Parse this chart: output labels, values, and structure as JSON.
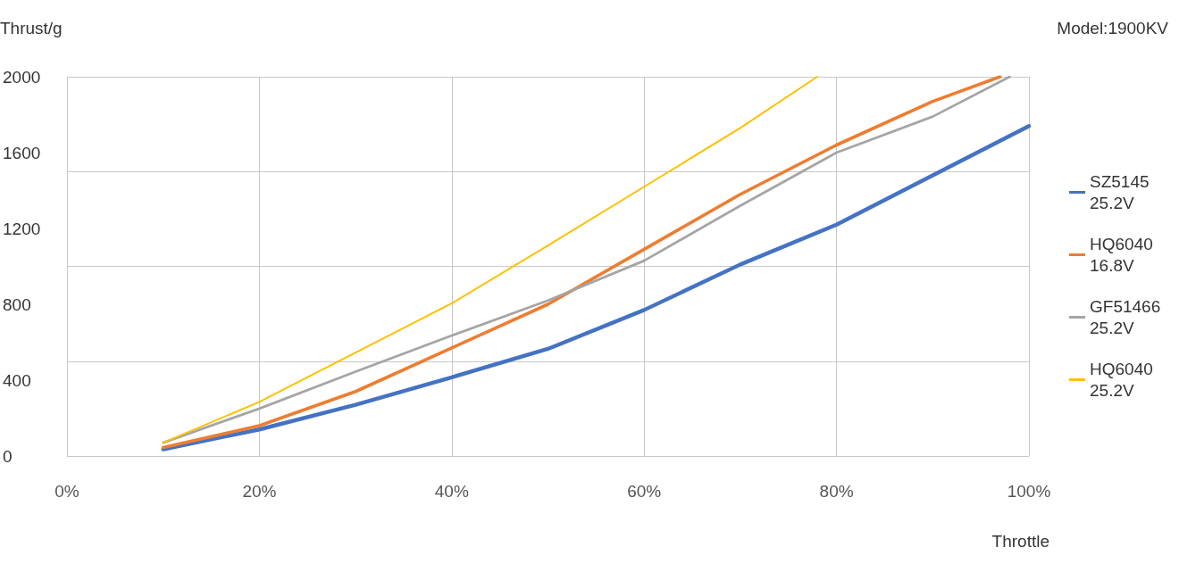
{
  "chart_data": {
    "type": "line",
    "xlabel": "Throttle",
    "ylabel": "Thrust/g",
    "annotations": [
      "Model:1900KV"
    ],
    "xlim": [
      0,
      100
    ],
    "xticks": [
      {
        "value": 0,
        "label": "0%"
      },
      {
        "value": 20,
        "label": "20%"
      },
      {
        "value": 40,
        "label": "40%"
      },
      {
        "value": 60,
        "label": "60%"
      },
      {
        "value": 80,
        "label": "80%"
      },
      {
        "value": 100,
        "label": "100%"
      }
    ],
    "ylim": [
      0,
      2000
    ],
    "yticks": [
      0,
      400,
      800,
      1200,
      1600,
      2000
    ],
    "grid": true,
    "legend": "right",
    "marker": "none",
    "line_style": "solid",
    "series": [
      {
        "name": "SZ5145 25.2V",
        "color": "#4472c4",
        "x": [
          10,
          20,
          30,
          40,
          50,
          60,
          70,
          80,
          90,
          100
        ],
        "values": [
          35,
          140,
          270,
          415,
          565,
          770,
          1010,
          1220,
          1480,
          1740
        ]
      },
      {
        "name": "HQ6040 16.8V",
        "color": "#ed7d31",
        "x": [
          10,
          20,
          30,
          40,
          50,
          60,
          70,
          80,
          90,
          97
        ],
        "values": [
          45,
          160,
          340,
          570,
          800,
          1090,
          1380,
          1640,
          1870,
          2000
        ]
      },
      {
        "name": "GF51466 25.2V",
        "color": "#a5a5a5",
        "x": [
          10,
          20,
          30,
          40,
          50,
          60,
          70,
          80,
          90,
          98
        ],
        "values": [
          70,
          250,
          445,
          635,
          820,
          1030,
          1320,
          1600,
          1790,
          2000
        ]
      },
      {
        "name": "HQ6040 25.2V",
        "color": "#ffc000",
        "x": [
          10,
          20,
          30,
          40,
          50,
          60,
          70,
          78
        ],
        "values": [
          70,
          285,
          545,
          805,
          1110,
          1420,
          1730,
          2000
        ]
      }
    ]
  }
}
